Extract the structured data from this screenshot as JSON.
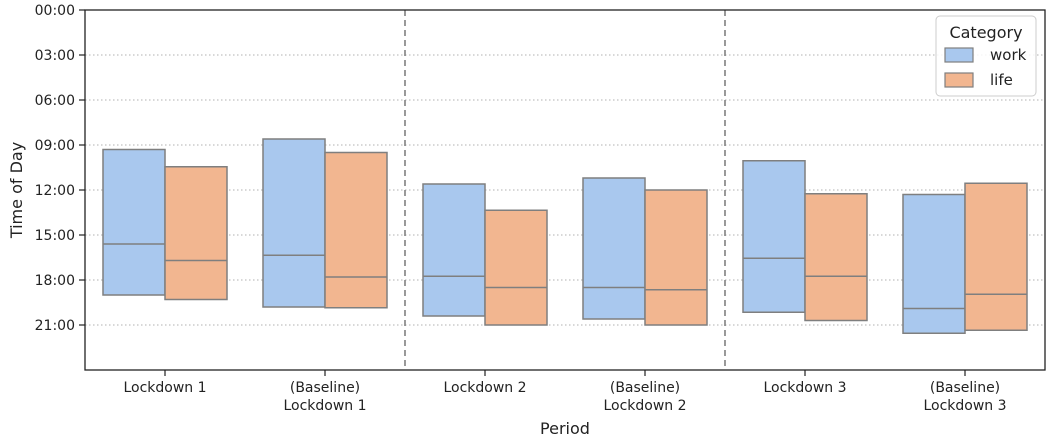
{
  "chart_data": {
    "type": "box",
    "ylabel": "Time of Day",
    "xlabel": "Period",
    "y_axis": {
      "unit": "hours",
      "min": 0,
      "max": 24,
      "inverted": true,
      "tick_values": [
        0,
        3,
        6,
        9,
        12,
        15,
        18,
        21
      ],
      "tick_labels": [
        "00:00",
        "03:00",
        "06:00",
        "09:00",
        "12:00",
        "15:00",
        "18:00",
        "21:00"
      ]
    },
    "grid": "horizontal dotted",
    "categories": [
      [
        "Lockdown 1"
      ],
      [
        "(Baseline)",
        "Lockdown 1"
      ],
      [
        "Lockdown 2"
      ],
      [
        "(Baseline)",
        "Lockdown 2"
      ],
      [
        "Lockdown 3"
      ],
      [
        "(Baseline)",
        "Lockdown 3"
      ]
    ],
    "separators_after_category_index": [
      1,
      3
    ],
    "legend": {
      "title": "Category",
      "position": "top-right",
      "entries": [
        {
          "name": "work",
          "color": "#a9c8ee"
        },
        {
          "name": "life",
          "color": "#f2b690"
        }
      ]
    },
    "box_edge_color": "#7f7f7f",
    "series": [
      {
        "name": "work",
        "color": "#a9c8ee",
        "boxes": [
          {
            "q1": 9.3,
            "median": 15.6,
            "q3": 19.0
          },
          {
            "q1": 8.6,
            "median": 16.35,
            "q3": 19.8
          },
          {
            "q1": 11.6,
            "median": 17.75,
            "q3": 20.4
          },
          {
            "q1": 11.2,
            "median": 18.5,
            "q3": 20.6
          },
          {
            "q1": 10.05,
            "median": 16.55,
            "q3": 20.15
          },
          {
            "q1": 12.3,
            "median": 19.9,
            "q3": 21.55
          }
        ]
      },
      {
        "name": "life",
        "color": "#f2b690",
        "boxes": [
          {
            "q1": 10.45,
            "median": 16.7,
            "q3": 19.3
          },
          {
            "q1": 9.5,
            "median": 17.8,
            "q3": 19.85
          },
          {
            "q1": 13.35,
            "median": 18.5,
            "q3": 21.0
          },
          {
            "q1": 12.0,
            "median": 18.65,
            "q3": 21.0
          },
          {
            "q1": 12.25,
            "median": 17.75,
            "q3": 20.7
          },
          {
            "q1": 11.55,
            "median": 18.95,
            "q3": 21.35
          }
        ]
      }
    ]
  }
}
